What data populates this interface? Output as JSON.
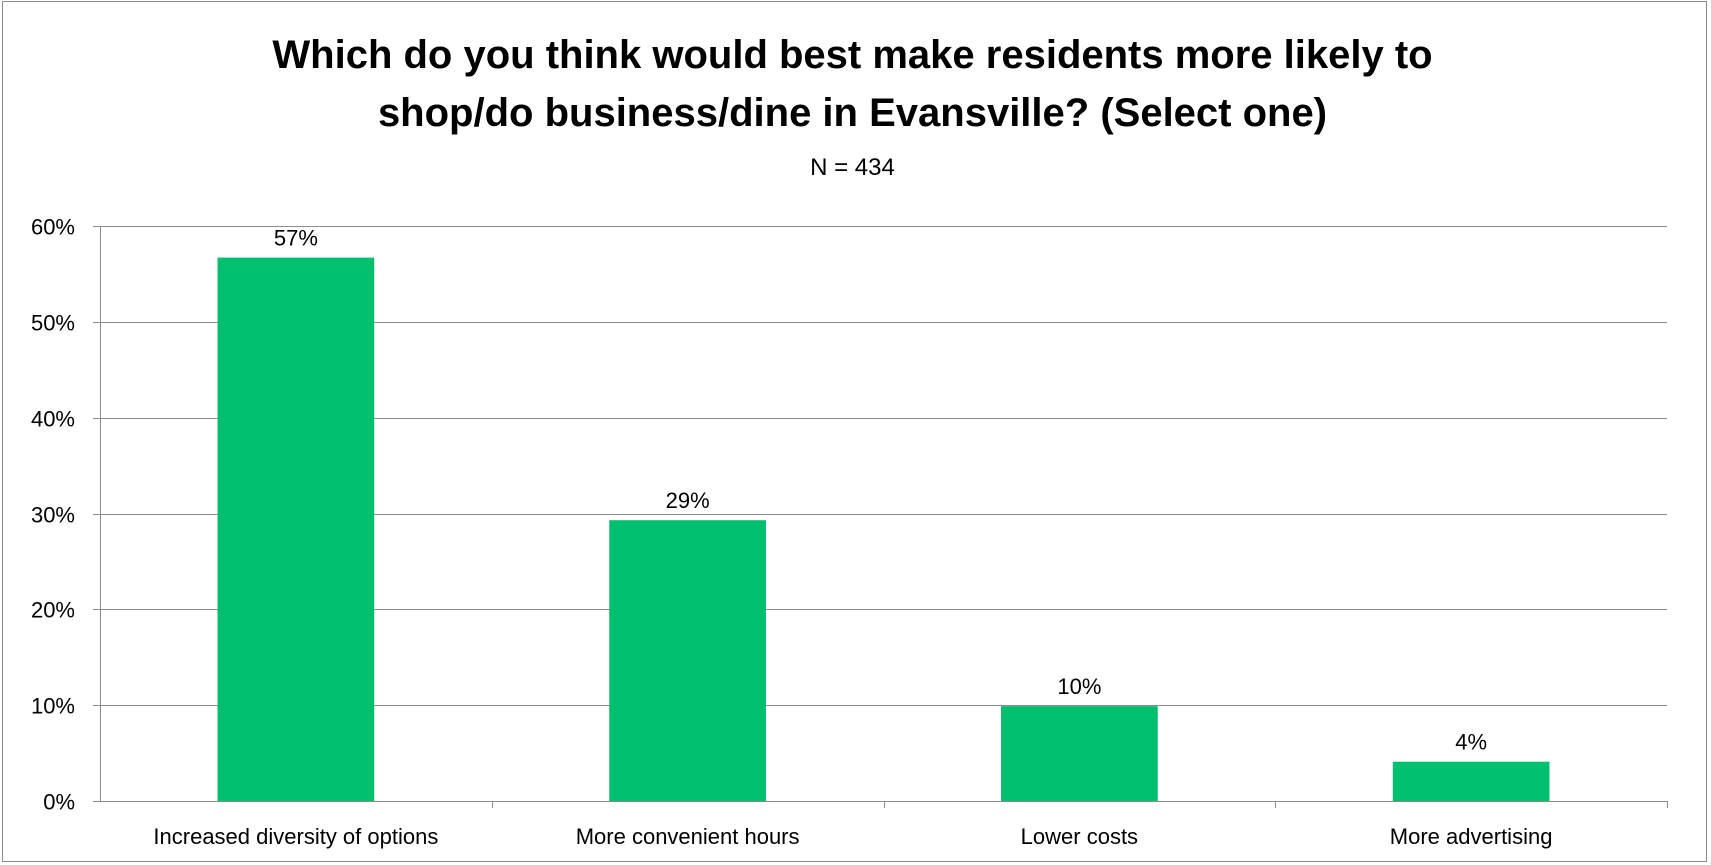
{
  "chart_data": {
    "type": "bar",
    "title_lines": [
      "Which do you think would best make residents more likely to",
      "shop/do business/dine in Evansville? (Select one)"
    ],
    "subtitle": "N = 434",
    "categories": [
      "Increased diversity of options",
      "More convenient hours",
      "Lower costs",
      "More advertising"
    ],
    "values": [
      56.7,
      29.3,
      9.9,
      4.1
    ],
    "value_labels": [
      "57%",
      "29%",
      "10%",
      "4%"
    ],
    "yticks": [
      0,
      10,
      20,
      30,
      40,
      50,
      60
    ],
    "ytick_labels": [
      "0%",
      "10%",
      "20%",
      "30%",
      "40%",
      "50%",
      "60%"
    ],
    "ylim": [
      0,
      60
    ],
    "grid": true,
    "legend": "none",
    "colors": {
      "bar": "#00BF6F",
      "grid": "#8c8c8c",
      "axis": "#8c8c8c",
      "border": "#8c8c8c"
    }
  }
}
